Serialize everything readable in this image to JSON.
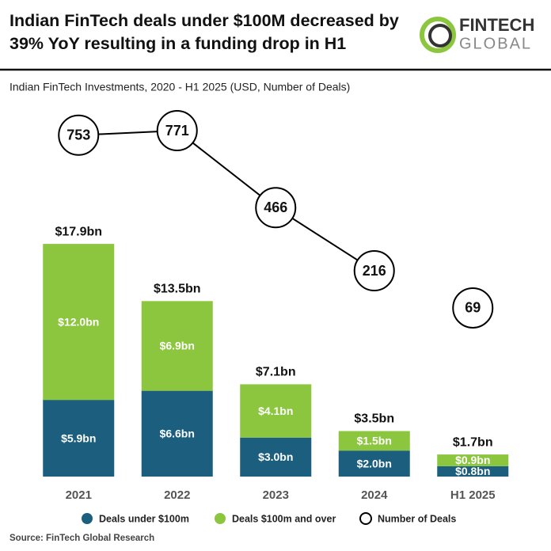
{
  "chart_data": {
    "type": "bar",
    "stacked": true,
    "title": "Indian FinTech deals under $100M decreased by 39% YoY resulting in a funding drop in H1",
    "subtitle": "Indian FinTech Investments, 2020 - H1 2025 (USD, Number of Deals)",
    "categories": [
      "2021",
      "2022",
      "2023",
      "2024",
      "H1 2025"
    ],
    "series": [
      {
        "name": "Deals under $100m",
        "color": "#1b5e7e",
        "values": [
          5.9,
          6.6,
          3.0,
          2.0,
          0.8
        ],
        "value_labels": [
          "$5.9bn",
          "$6.6bn",
          "$3.0bn",
          "$2.0bn",
          "$0.8bn"
        ]
      },
      {
        "name": "Deals $100m and over",
        "color": "#8cc63e",
        "values": [
          12.0,
          6.9,
          4.1,
          1.5,
          0.9
        ],
        "value_labels": [
          "$12.0bn",
          "$6.9bn",
          "$4.1bn",
          "$1.5bn",
          "$0.9bn"
        ]
      },
      {
        "name": "Number of Deals",
        "type": "line",
        "color": "#000000",
        "values": [
          753,
          771,
          466,
          216,
          69
        ]
      }
    ],
    "totals": {
      "values": [
        17.9,
        13.5,
        7.1,
        3.5,
        1.7
      ],
      "value_labels": [
        "$17.9bn",
        "$13.5bn",
        "$7.1bn",
        "$3.5bn",
        "$1.7bn"
      ]
    },
    "source": "Source: FinTech Global Research"
  },
  "logo": {
    "line1": "FINTECH",
    "line2": "GLOBAL"
  }
}
